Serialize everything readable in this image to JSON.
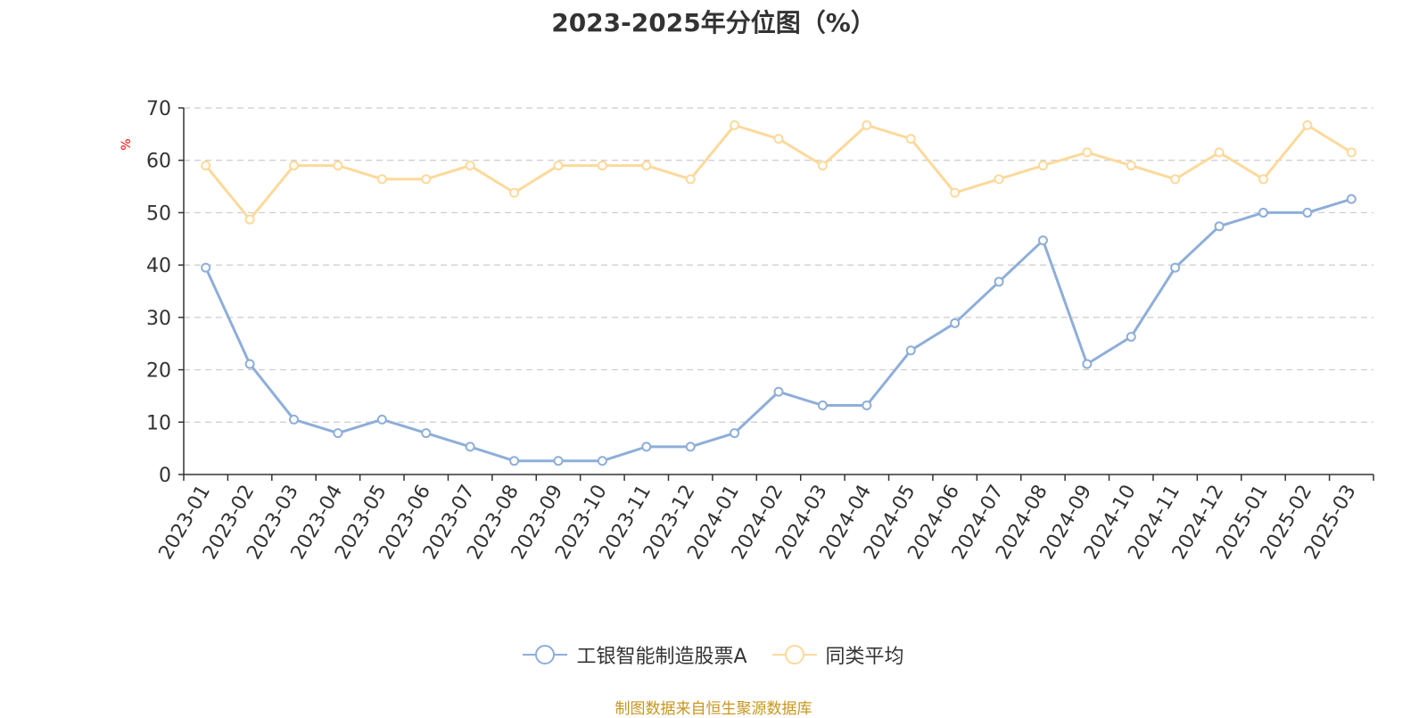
{
  "chart_data": {
    "type": "line",
    "title": "2023-2025年分位图（%）",
    "ylabel": "%",
    "xlabel": "",
    "ylim": [
      0,
      70
    ],
    "yticks": [
      0,
      10,
      20,
      30,
      40,
      50,
      60,
      70
    ],
    "grid": true,
    "legend_position": "bottom",
    "categories": [
      "2023-01",
      "2023-02",
      "2023-03",
      "2023-04",
      "2023-05",
      "2023-06",
      "2023-07",
      "2023-08",
      "2023-09",
      "2023-10",
      "2023-11",
      "2023-12",
      "2024-01",
      "2024-02",
      "2024-03",
      "2024-04",
      "2024-05",
      "2024-06",
      "2024-07",
      "2024-08",
      "2024-09",
      "2024-10",
      "2024-11",
      "2024-12",
      "2025-01",
      "2025-02",
      "2025-03"
    ],
    "series": [
      {
        "name": "工银智能制造股票A",
        "color": "#8eaed9",
        "values": [
          39.5,
          21.1,
          10.5,
          7.9,
          10.5,
          7.9,
          5.3,
          2.6,
          2.6,
          2.6,
          5.3,
          5.3,
          7.9,
          15.8,
          13.2,
          13.2,
          23.7,
          28.9,
          36.8,
          44.7,
          21.1,
          26.3,
          39.5,
          47.4,
          50.0,
          50.0,
          52.6
        ]
      },
      {
        "name": "同类平均",
        "color": "#fdd99a",
        "values": [
          59.0,
          48.7,
          59.0,
          59.0,
          56.4,
          56.4,
          59.0,
          53.8,
          59.0,
          59.0,
          59.0,
          56.4,
          66.7,
          64.1,
          59.0,
          66.7,
          64.1,
          53.8,
          56.4,
          59.0,
          61.5,
          59.0,
          56.4,
          61.5,
          56.4,
          66.7,
          61.5
        ]
      }
    ]
  },
  "source_note": "制图数据来自恒生聚源数据库"
}
